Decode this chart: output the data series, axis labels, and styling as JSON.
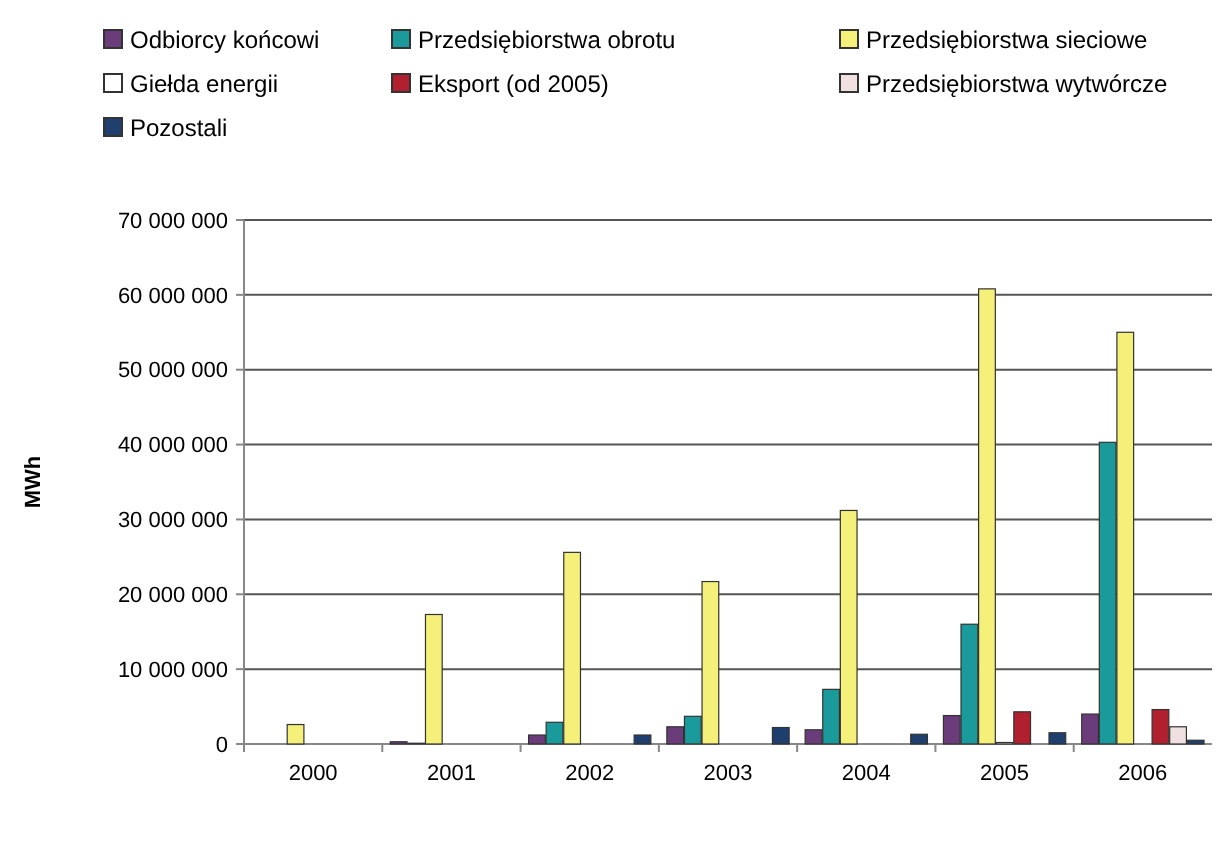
{
  "chart_data": {
    "type": "bar",
    "ylabel": "MWh",
    "categories": [
      "2000",
      "2001",
      "2002",
      "2003",
      "2004",
      "2005",
      "2006"
    ],
    "series": [
      {
        "name": "Odbiorcy końcowi",
        "color": "#6a3d7a",
        "values": [
          0,
          300000,
          1200000,
          2300000,
          1900000,
          3800000,
          4000000
        ]
      },
      {
        "name": "Przedsiębiorstwa obrotu",
        "color": "#1a9a9a",
        "values": [
          0,
          100000,
          2900000,
          3700000,
          7300000,
          16000000,
          40300000
        ]
      },
      {
        "name": "Przedsiębiorstwa sieciowe",
        "color": "#f5f07a",
        "values": [
          2600000,
          17300000,
          25600000,
          21700000,
          31200000,
          60800000,
          55000000
        ]
      },
      {
        "name": "Giełda energii",
        "color": "#ffffff",
        "values": [
          0,
          0,
          0,
          0,
          0,
          200000,
          null
        ]
      },
      {
        "name": "Eksport (od 2005)",
        "color": "#b0202e",
        "values": [
          null,
          null,
          null,
          null,
          null,
          4300000,
          4600000
        ]
      },
      {
        "name": "Przedsiębiorstwa wytwórcze",
        "color": "#f0e0e0",
        "values": [
          0,
          0,
          0,
          0,
          0,
          0,
          2300000
        ]
      },
      {
        "name": "Pozostali",
        "color": "#1f3f6f",
        "values": [
          0,
          0,
          1200000,
          2200000,
          1300000,
          1500000,
          500000
        ]
      }
    ],
    "ylim": [
      0,
      70000000
    ],
    "yticks": [
      0,
      {
        "value": 10000000,
        "label": "10 000 000"
      },
      {
        "value": 20000000,
        "label": "20 000 000"
      },
      {
        "value": 30000000,
        "label": "30 000 000"
      },
      {
        "value": 40000000,
        "label": "40 000 000"
      },
      {
        "value": 50000000,
        "label": "50 000 000"
      },
      {
        "value": 60000000,
        "label": "60 000 000"
      },
      {
        "value": 70000000,
        "label": "70 000 000"
      }
    ],
    "grid": "y",
    "legend": "top"
  }
}
